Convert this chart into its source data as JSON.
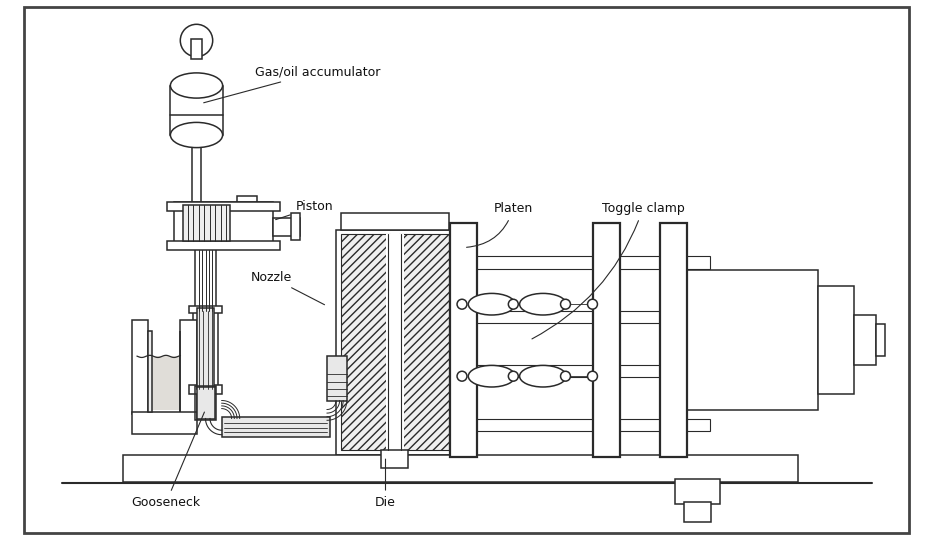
{
  "bg_color": "#ffffff",
  "line_color": "#2a2a2a",
  "border_color": "#555555",
  "labels": {
    "accumulator": "Gas/oil accumulator",
    "piston": "Piston",
    "nozzle": "Nozzle",
    "gooseneck": "Gooseneck",
    "die": "Die",
    "platen": "Platen",
    "toggle_clamp": "Toggle clamp"
  },
  "font_size": 9.0
}
